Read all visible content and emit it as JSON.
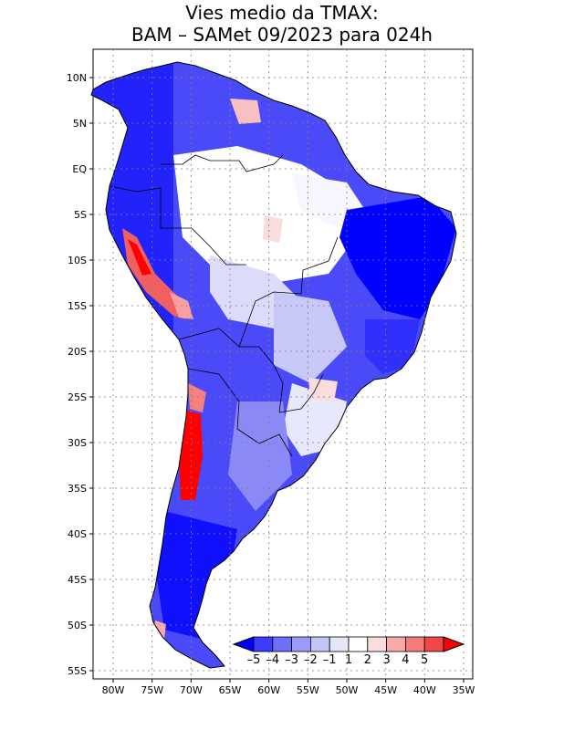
{
  "title": {
    "line1": "Vies medio da TMAX:",
    "line2": "BAM – SAMet 09/2023  para 024h"
  },
  "map": {
    "projection": "lat-lon",
    "lon_range": [
      -83,
      -34
    ],
    "lat_range": [
      -56,
      13
    ],
    "grid": true,
    "lon_ticks": [
      {
        "lon": -80,
        "label": "80W"
      },
      {
        "lon": -75,
        "label": "75W"
      },
      {
        "lon": -70,
        "label": "70W"
      },
      {
        "lon": -65,
        "label": "65W"
      },
      {
        "lon": -60,
        "label": "60W"
      },
      {
        "lon": -55,
        "label": "55W"
      },
      {
        "lon": -50,
        "label": "50W"
      },
      {
        "lon": -45,
        "label": "45W"
      },
      {
        "lon": -40,
        "label": "40W"
      },
      {
        "lon": -35,
        "label": "35W"
      }
    ],
    "lat_ticks": [
      {
        "lat": 10,
        "label": "10N"
      },
      {
        "lat": 5,
        "label": "5N"
      },
      {
        "lat": 0,
        "label": "EQ"
      },
      {
        "lat": -5,
        "label": "5S"
      },
      {
        "lat": -10,
        "label": "10S"
      },
      {
        "lat": -15,
        "label": "15S"
      },
      {
        "lat": -20,
        "label": "20S"
      },
      {
        "lat": -25,
        "label": "25S"
      },
      {
        "lat": -30,
        "label": "30S"
      },
      {
        "lat": -35,
        "label": "35S"
      },
      {
        "lat": -40,
        "label": "40S"
      },
      {
        "lat": -45,
        "label": "45S"
      },
      {
        "lat": -50,
        "label": "50S"
      },
      {
        "lat": -55,
        "label": "55S"
      }
    ]
  },
  "colorbar": {
    "labels": [
      "–5",
      "–4",
      "–3",
      "–2",
      "–1",
      "1",
      "2",
      "3",
      "4",
      "5"
    ],
    "colors": [
      "#0000ff",
      "#3c3cfa",
      "#6e6ef8",
      "#9a9af8",
      "#c4c4f8",
      "#e6e6fa",
      "#ffffff",
      "#fadcdc",
      "#f8aaaa",
      "#f47c7c",
      "#f04848",
      "#ff0000"
    ]
  }
}
